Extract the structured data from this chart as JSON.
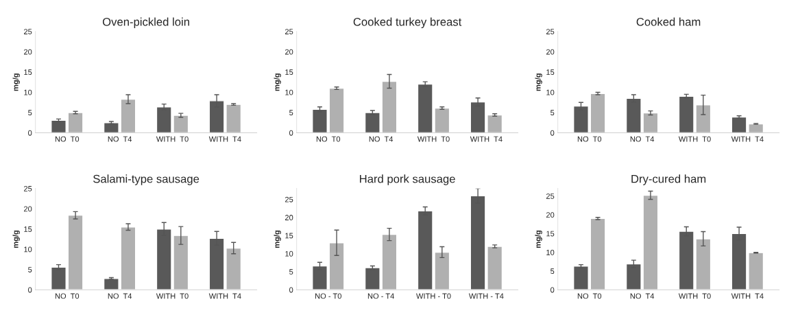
{
  "chart_data": [
    {
      "type": "bar",
      "title": "Oven-pickled loin",
      "ylabel": "mg/g",
      "categories": [
        "NO  T0",
        "NO  T4",
        "WITH  T0",
        "WITH  T4"
      ],
      "ylim": [
        0,
        25
      ],
      "yticks": [
        0,
        5,
        10,
        15,
        20,
        25
      ],
      "series": [
        {
          "color": "#595959",
          "values": [
            3.1,
            2.5,
            6.4,
            7.9
          ],
          "errors": [
            0.3,
            0.3,
            0.7,
            1.5
          ]
        },
        {
          "color": "#b0b0b0",
          "values": [
            5.0,
            8.3,
            4.3,
            7.0
          ],
          "errors": [
            0.3,
            1.1,
            0.5,
            0.2
          ]
        }
      ]
    },
    {
      "type": "bar",
      "title": "Cooked turkey breast",
      "ylabel": "mg/g",
      "categories": [
        "NO  T0",
        "NO  T4",
        "WITH  T0",
        "WITH  T4"
      ],
      "ylim": [
        0,
        25
      ],
      "yticks": [
        0,
        5,
        10,
        15,
        20,
        25
      ],
      "series": [
        {
          "color": "#595959",
          "values": [
            5.8,
            5.0,
            12.0,
            7.6
          ],
          "errors": [
            0.6,
            0.5,
            0.6,
            1.0
          ]
        },
        {
          "color": "#b0b0b0",
          "values": [
            11.0,
            12.7,
            6.1,
            4.4
          ],
          "errors": [
            0.3,
            1.7,
            0.3,
            0.3
          ]
        }
      ]
    },
    {
      "type": "bar",
      "title": "Cooked ham",
      "ylabel": "mg/g",
      "categories": [
        "NO  T0",
        "NO  T4",
        "WITH  T0",
        "WITH  T4"
      ],
      "ylim": [
        0,
        25
      ],
      "yticks": [
        0,
        5,
        10,
        15,
        20,
        25
      ],
      "series": [
        {
          "color": "#595959",
          "values": [
            6.6,
            8.5,
            9.0,
            3.9
          ],
          "errors": [
            0.9,
            0.9,
            0.5,
            0.3
          ]
        },
        {
          "color": "#b0b0b0",
          "values": [
            9.7,
            4.9,
            6.9,
            2.2
          ],
          "errors": [
            0.3,
            0.5,
            2.4,
            0.1
          ]
        }
      ]
    },
    {
      "type": "bar",
      "title": "Salami-type sausage",
      "ylabel": "mg/g",
      "categories": [
        "NO  T0",
        "NO  T4",
        "WITH  T0",
        "WITH  T4"
      ],
      "ylim": [
        0,
        25
      ],
      "yticks": [
        0,
        5,
        10,
        15,
        20,
        25
      ],
      "series": [
        {
          "color": "#595959",
          "values": [
            5.6,
            2.8,
            15.0,
            12.7
          ],
          "errors": [
            0.6,
            0.2,
            1.6,
            1.7
          ]
        },
        {
          "color": "#b0b0b0",
          "values": [
            18.4,
            15.5,
            13.4,
            10.3
          ],
          "errors": [
            0.9,
            0.8,
            2.2,
            1.4
          ]
        }
      ]
    },
    {
      "type": "bar",
      "title": "Hard pork sausage",
      "ylabel": "mg/g",
      "categories": [
        "NO - T0",
        "NO - T4",
        "WITH - T0",
        "WITH - T4"
      ],
      "ylim": [
        0,
        28
      ],
      "yticks": [
        0,
        5,
        10,
        15,
        20,
        25
      ],
      "series": [
        {
          "color": "#595959",
          "values": [
            6.6,
            6.1,
            21.8,
            26.0
          ],
          "errors": [
            1.0,
            0.5,
            1.1,
            2.0
          ]
        },
        {
          "color": "#b0b0b0",
          "values": [
            13.0,
            15.3,
            10.4,
            12.0
          ],
          "errors": [
            3.5,
            1.7,
            1.5,
            0.4
          ]
        }
      ]
    },
    {
      "type": "bar",
      "title": "Dry-cured ham",
      "ylabel": "mg/g",
      "categories": [
        "NO  T0",
        "NO  T4",
        "WITH  T0",
        "WITH  T4"
      ],
      "ylim": [
        0,
        27
      ],
      "yticks": [
        0,
        5,
        10,
        15,
        20,
        25
      ],
      "series": [
        {
          "color": "#595959",
          "values": [
            6.3,
            6.9,
            15.6,
            15.0
          ],
          "errors": [
            0.4,
            1.0,
            1.2,
            1.7
          ]
        },
        {
          "color": "#b0b0b0",
          "values": [
            19.0,
            25.2,
            13.6,
            9.9
          ],
          "errors": [
            0.3,
            1.1,
            1.9,
            0.1
          ]
        }
      ]
    }
  ]
}
